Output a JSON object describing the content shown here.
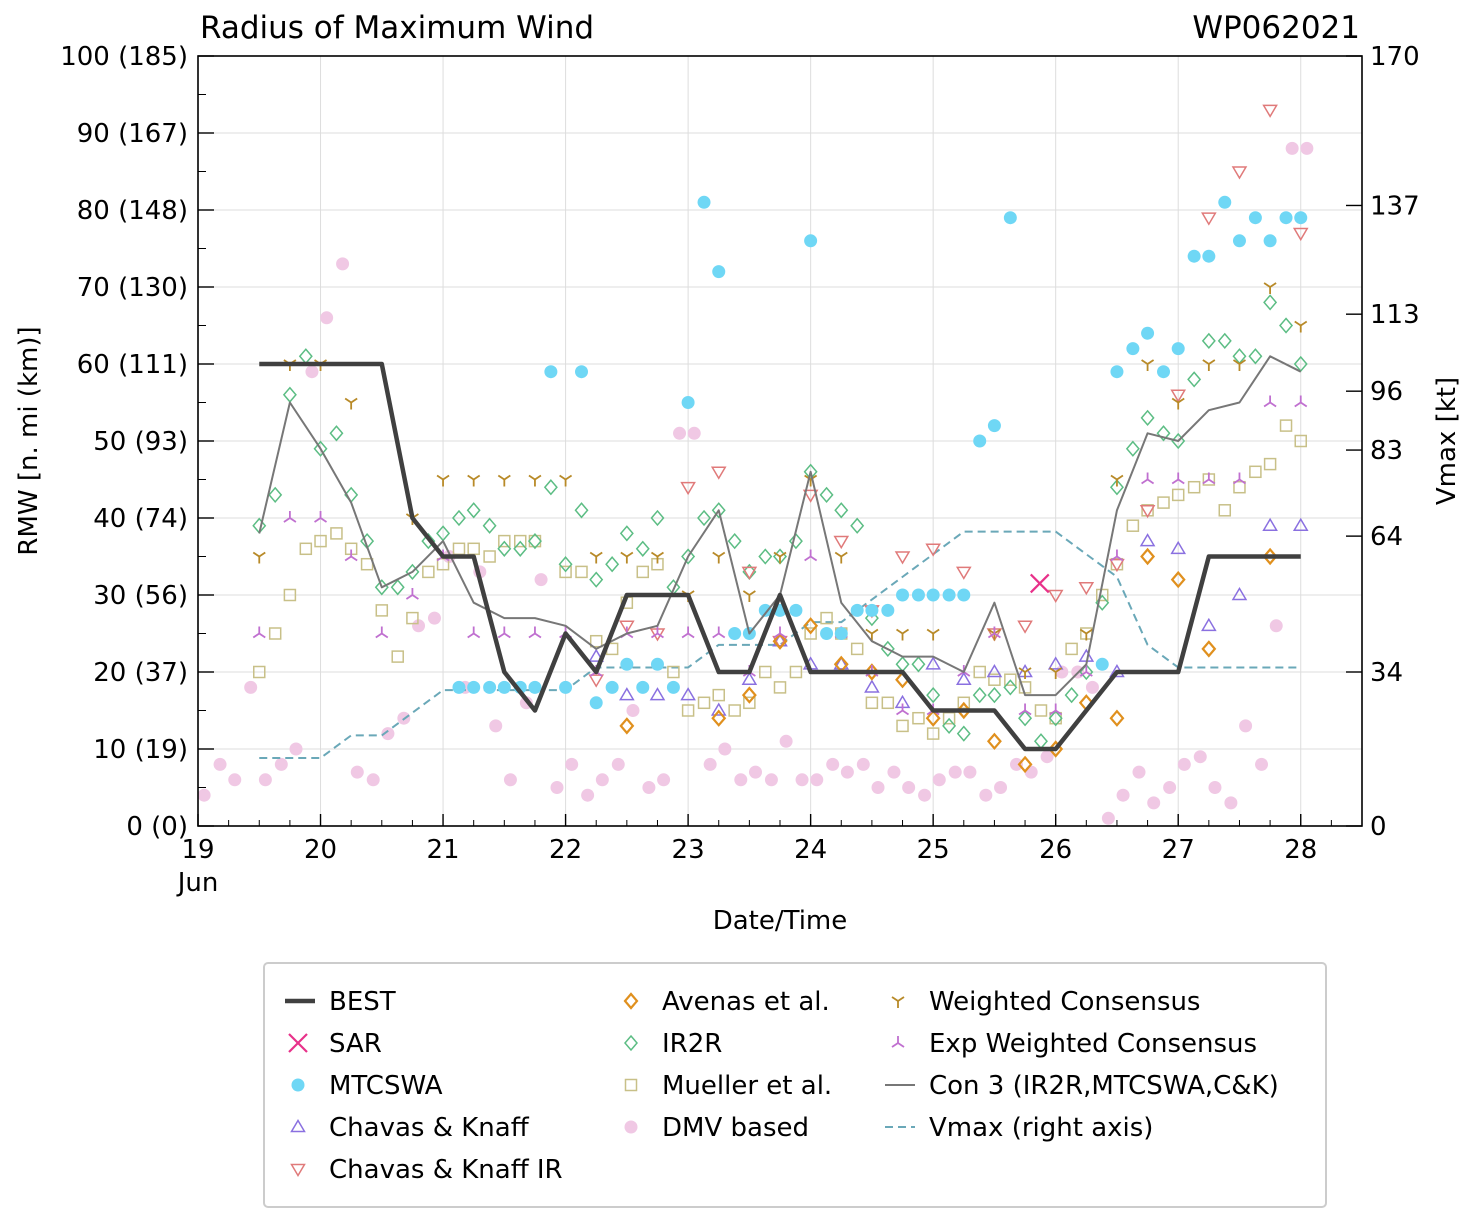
{
  "chart_data": {
    "type": "scatter",
    "title": "Radius of Maximum Wind",
    "storm_id": "WP062021",
    "xlabel": "Date/Time",
    "ylabel": "RMW [n. mi (km)]",
    "y2label": "Vmax [kt]",
    "x_unit": "day of June 2021",
    "xlim": [
      19,
      28.5
    ],
    "ylim": [
      0,
      100
    ],
    "y2lim": [
      0,
      170
    ],
    "x_ticks": [
      {
        "value": 19,
        "label": "19"
      },
      {
        "value": 20,
        "label": "20"
      },
      {
        "value": 21,
        "label": "21"
      },
      {
        "value": 22,
        "label": "22"
      },
      {
        "value": 23,
        "label": "23"
      },
      {
        "value": 24,
        "label": "24"
      },
      {
        "value": 25,
        "label": "25"
      },
      {
        "value": 26,
        "label": "26"
      },
      {
        "value": 27,
        "label": "27"
      },
      {
        "value": 28,
        "label": "28"
      }
    ],
    "x_month_label": "Jun",
    "y_ticks": [
      {
        "value": 0,
        "label": "0 (0)"
      },
      {
        "value": 10,
        "label": "10 (19)"
      },
      {
        "value": 20,
        "label": "20 (37)"
      },
      {
        "value": 30,
        "label": "30 (56)"
      },
      {
        "value": 40,
        "label": "40 (74)"
      },
      {
        "value": 50,
        "label": "50 (93)"
      },
      {
        "value": 60,
        "label": "60 (111)"
      },
      {
        "value": 70,
        "label": "70 (130)"
      },
      {
        "value": 80,
        "label": "80 (148)"
      },
      {
        "value": 90,
        "label": "90 (167)"
      },
      {
        "value": 100,
        "label": "100 (185)"
      }
    ],
    "y2_ticks": [
      {
        "value": 0,
        "label": "0"
      },
      {
        "value": 34,
        "label": "34"
      },
      {
        "value": 64,
        "label": "64"
      },
      {
        "value": 83,
        "label": "83"
      },
      {
        "value": 96,
        "label": "96"
      },
      {
        "value": 113,
        "label": "113"
      },
      {
        "value": 137,
        "label": "137"
      },
      {
        "value": 170,
        "label": "170"
      }
    ],
    "series": [
      {
        "name": "BEST",
        "style": "line",
        "color": "#404040",
        "x": [
          19.5,
          20.5,
          20.75,
          21,
          21.25,
          21.5,
          21.75,
          22,
          22.25,
          22.5,
          22.75,
          23,
          23.25,
          23.5,
          23.75,
          24,
          24.25,
          24.5,
          24.75,
          25,
          25.25,
          25.5,
          25.75,
          26,
          26.25,
          26.5,
          26.75,
          27,
          27.25,
          27.5,
          27.75,
          28
        ],
        "y": [
          60,
          60,
          40,
          35,
          35,
          20,
          15,
          25,
          20,
          30,
          30,
          30,
          20,
          20,
          30,
          20,
          20,
          20,
          20,
          15,
          15,
          15,
          10,
          10,
          15,
          20,
          20,
          20,
          35,
          35,
          35,
          35
        ]
      },
      {
        "name": "SAR",
        "style": "x",
        "color": "#e8318a",
        "x": [
          25.87
        ],
        "y": [
          31.5
        ]
      },
      {
        "name": "MTCSWA",
        "style": "circle",
        "color": "#6fd7f5",
        "x": [
          21.13,
          21.25,
          21.38,
          21.5,
          21.63,
          21.75,
          21.88,
          22,
          22.13,
          22.25,
          22.38,
          22.5,
          22.63,
          22.75,
          22.88,
          23,
          23.13,
          23.25,
          23.38,
          23.5,
          23.63,
          23.75,
          23.88,
          24,
          24.13,
          24.25,
          24.38,
          24.5,
          24.63,
          24.75,
          24.88,
          25,
          25.13,
          25.25,
          25.38,
          25.5,
          25.63,
          26.38,
          26.5,
          26.63,
          26.75,
          26.88,
          27,
          27.13,
          27.25,
          27.38,
          27.5,
          27.63,
          27.75,
          27.88,
          28
        ],
        "y": [
          18,
          18,
          18,
          18,
          18,
          18,
          59,
          18,
          59,
          16,
          18,
          21,
          18,
          21,
          18,
          55,
          81,
          72,
          25,
          25,
          28,
          28,
          28,
          76,
          25,
          25,
          28,
          28,
          28,
          30,
          30,
          30,
          30,
          30,
          50,
          52,
          79,
          21,
          59,
          62,
          64,
          59,
          62,
          74,
          74,
          81,
          76,
          79,
          76,
          79,
          79
        ]
      },
      {
        "name": "Chavas & Knaff",
        "style": "triangle-up",
        "color": "#8a70e0",
        "x": [
          22.25,
          22.5,
          22.75,
          23,
          23.25,
          23.5,
          23.75,
          24,
          24.25,
          24.5,
          24.75,
          25,
          25.25,
          25.5,
          25.75,
          26,
          26.25,
          26.5,
          26.75,
          27,
          27.25,
          27.5,
          27.75,
          28
        ],
        "y": [
          22,
          17,
          17,
          17,
          15,
          19,
          24,
          21,
          21,
          18,
          16,
          21,
          19,
          20,
          20,
          21,
          22,
          20,
          37,
          36,
          26,
          30,
          39,
          39
        ]
      },
      {
        "name": "Chavas & Knaff IR",
        "style": "triangle-down",
        "color": "#e07a7a",
        "x": [
          22.25,
          22.5,
          22.75,
          23,
          23.25,
          23.5,
          23.75,
          24,
          24.25,
          24.5,
          24.75,
          25,
          25.25,
          25.5,
          25.75,
          26,
          26.25,
          26.5,
          26.75,
          27,
          27.25,
          27.5,
          27.75,
          28
        ],
        "y": [
          19,
          26,
          25,
          44,
          46,
          33,
          24,
          43,
          37,
          28,
          35,
          36,
          33,
          25,
          26,
          30,
          31,
          34,
          41,
          56,
          79,
          85,
          93,
          77
        ]
      },
      {
        "name": "Avenas et al.",
        "style": "diamond",
        "color": "#e0901e",
        "x": [
          22.5,
          23.25,
          23.5,
          23.75,
          24,
          24.25,
          24.5,
          24.75,
          25,
          25.25,
          25.5,
          25.75,
          26,
          26.25,
          26.5,
          26.75,
          27,
          27.25,
          27.75
        ],
        "y": [
          13,
          14,
          17,
          24,
          26,
          21,
          20,
          19,
          14,
          15,
          11,
          8,
          10,
          16,
          14,
          35,
          32,
          23,
          35
        ]
      },
      {
        "name": "IR2R",
        "style": "diamond-open",
        "color": "#5cbd84",
        "x": [
          19.5,
          19.63,
          19.75,
          19.88,
          20,
          20.13,
          20.25,
          20.38,
          20.5,
          20.63,
          20.75,
          20.88,
          21,
          21.13,
          21.25,
          21.38,
          21.5,
          21.63,
          21.75,
          21.88,
          22,
          22.13,
          22.25,
          22.38,
          22.5,
          22.63,
          22.75,
          22.88,
          23,
          23.13,
          23.25,
          23.38,
          23.5,
          23.63,
          23.75,
          23.88,
          24,
          24.13,
          24.25,
          24.38,
          24.5,
          24.63,
          24.75,
          24.88,
          25,
          25.13,
          25.25,
          25.38,
          25.5,
          25.63,
          25.75,
          25.88,
          26,
          26.13,
          26.25,
          26.38,
          26.5,
          26.63,
          26.75,
          26.88,
          27,
          27.13,
          27.25,
          27.38,
          27.5,
          27.63,
          27.75,
          27.88,
          28
        ],
        "y": [
          39,
          43,
          56,
          61,
          49,
          51,
          43,
          37,
          31,
          31,
          33,
          37,
          38,
          40,
          41,
          39,
          36,
          36,
          37,
          44,
          34,
          41,
          32,
          34,
          38,
          36,
          40,
          31,
          35,
          40,
          41,
          37,
          33,
          35,
          35,
          37,
          46,
          43,
          41,
          39,
          27,
          23,
          21,
          21,
          17,
          13,
          12,
          17,
          17,
          18,
          14,
          11,
          14,
          17,
          20,
          29,
          44,
          49,
          53,
          51,
          50,
          58,
          63,
          63,
          61,
          61,
          68,
          65,
          60
        ]
      },
      {
        "name": "Mueller et al.",
        "style": "square",
        "color": "#c8c088",
        "x": [
          19.5,
          19.63,
          19.75,
          19.88,
          20,
          20.13,
          20.25,
          20.38,
          20.5,
          20.63,
          20.75,
          20.88,
          21,
          21.13,
          21.25,
          21.38,
          21.5,
          21.63,
          21.75,
          22,
          22.13,
          22.25,
          22.38,
          22.5,
          22.63,
          22.75,
          22.88,
          23,
          23.13,
          23.25,
          23.38,
          23.5,
          23.63,
          23.75,
          23.88,
          24,
          24.13,
          24.25,
          24.38,
          24.5,
          24.63,
          24.75,
          24.88,
          25,
          25.13,
          25.25,
          25.38,
          25.5,
          25.63,
          25.75,
          25.88,
          26,
          26.13,
          26.25,
          26.38,
          26.5,
          26.63,
          26.75,
          26.88,
          27,
          27.13,
          27.25,
          27.38,
          27.5,
          27.63,
          27.75,
          27.88,
          28
        ],
        "y": [
          20,
          25,
          30,
          36,
          37,
          38,
          36,
          34,
          28,
          22,
          27,
          33,
          34,
          36,
          36,
          35,
          37,
          37,
          37,
          33,
          33,
          24,
          23,
          29,
          33,
          34,
          20,
          15,
          16,
          17,
          15,
          16,
          20,
          18,
          20,
          25,
          27,
          25,
          23,
          16,
          16,
          13,
          14,
          12,
          14,
          16,
          20,
          19,
          19,
          18,
          15,
          14,
          23,
          25,
          30,
          34,
          39,
          41,
          42,
          43,
          44,
          45,
          41,
          44,
          46,
          47,
          52,
          50
        ]
      },
      {
        "name": "DMV based",
        "style": "circle",
        "color": "#f0c8e4",
        "x": [
          19.05,
          19.18,
          19.3,
          19.43,
          19.55,
          19.68,
          19.8,
          19.93,
          20.05,
          20.18,
          20.3,
          20.43,
          20.55,
          20.68,
          20.8,
          20.93,
          21.05,
          21.18,
          21.3,
          21.43,
          21.55,
          21.68,
          21.8,
          21.93,
          22.05,
          22.18,
          22.3,
          22.43,
          22.55,
          22.68,
          22.8,
          22.93,
          23.05,
          23.18,
          23.3,
          23.43,
          23.55,
          23.68,
          23.8,
          23.93,
          24.05,
          24.18,
          24.3,
          24.43,
          24.55,
          24.68,
          24.8,
          24.93,
          25.05,
          25.18,
          25.3,
          25.43,
          25.55,
          25.68,
          25.8,
          25.93,
          26.05,
          26.18,
          26.3,
          26.43,
          26.55,
          26.68,
          26.8,
          26.93,
          27.05,
          27.18,
          27.3,
          27.43,
          27.55,
          27.68,
          27.8,
          27.93,
          28.05
        ],
        "y": [
          4,
          8,
          6,
          18,
          6,
          8,
          10,
          59,
          66,
          73,
          7,
          6,
          12,
          14,
          26,
          27,
          35,
          18,
          33,
          13,
          6,
          16,
          32,
          5,
          8,
          4,
          6,
          8,
          15,
          5,
          6,
          51,
          51,
          8,
          10,
          6,
          7,
          6,
          11,
          6,
          6,
          8,
          7,
          8,
          5,
          7,
          5,
          4,
          6,
          7,
          7,
          4,
          5,
          8,
          7,
          9,
          20,
          20,
          18,
          1,
          4,
          7,
          3,
          5,
          8,
          9,
          5,
          3,
          13,
          8,
          26,
          88,
          88
        ]
      },
      {
        "name": "Weighted Consensus",
        "style": "tri-down",
        "color": "#b88a28",
        "x": [
          19.5,
          19.75,
          20,
          20.25,
          20.75,
          21,
          21.25,
          21.5,
          21.75,
          22,
          22.25,
          22.5,
          22.75,
          23,
          23.25,
          23.5,
          23.75,
          24,
          24.25,
          24.5,
          24.75,
          25,
          25.5,
          25.75,
          26,
          26.25,
          26.5,
          26.75,
          27,
          27.25,
          27.5,
          27.75,
          28
        ],
        "y": [
          35,
          60,
          60,
          55,
          40,
          45,
          45,
          45,
          45,
          45,
          35,
          35,
          35,
          30,
          35,
          30,
          35,
          45,
          35,
          25,
          25,
          25,
          25,
          20,
          20,
          25,
          45,
          60,
          55,
          60,
          60,
          70,
          65
        ]
      },
      {
        "name": "Exp Weighted Consensus",
        "style": "tri-up",
        "color": "#c070d0",
        "x": [
          19.5,
          19.75,
          20,
          20.25,
          20.5,
          20.75,
          21,
          21.25,
          21.5,
          21.75,
          22,
          22.25,
          22.5,
          22.75,
          23,
          23.25,
          23.5,
          23.75,
          24,
          24.25,
          24.5,
          24.75,
          25,
          25.25,
          25.5,
          25.75,
          26,
          26.25,
          26.5,
          26.75,
          27,
          27.25,
          27.5,
          27.75,
          28
        ],
        "y": [
          25,
          40,
          40,
          35,
          25,
          30,
          35,
          25,
          25,
          25,
          25,
          20,
          25,
          25,
          25,
          25,
          20,
          25,
          35,
          25,
          20,
          15,
          15,
          20,
          25,
          15,
          15,
          20,
          35,
          45,
          45,
          45,
          45,
          55,
          55
        ]
      },
      {
        "name": "Con 3 (IR2R,MTCSWA,C&K)",
        "style": "thin-line",
        "color": "#777777",
        "x": [
          19.5,
          19.75,
          20,
          20.25,
          20.5,
          20.75,
          21,
          21.25,
          21.5,
          21.75,
          22,
          22.25,
          22.5,
          22.75,
          23,
          23.25,
          23.5,
          23.75,
          24,
          24.25,
          24.5,
          24.75,
          25,
          25.25,
          25.5,
          25.75,
          26,
          26.25,
          26.5,
          26.75,
          27,
          27.25,
          27.5,
          27.75,
          28
        ],
        "y": [
          38,
          55,
          49,
          42,
          31,
          33,
          37,
          29,
          27,
          27,
          26,
          23,
          25,
          26,
          35,
          41,
          25,
          30,
          46,
          29,
          24,
          22,
          22,
          20,
          29,
          17,
          17,
          21,
          41,
          51,
          50,
          54,
          55,
          61,
          59
        ]
      },
      {
        "name": "Vmax (right axis)",
        "style": "dashed",
        "color": "#6aa8b8",
        "axis": "right",
        "x": [
          19.5,
          19.75,
          20,
          20.25,
          20.5,
          20.75,
          21,
          21.25,
          21.5,
          21.75,
          22,
          22.25,
          22.5,
          22.75,
          23,
          23.25,
          23.5,
          23.75,
          24,
          24.25,
          24.5,
          24.75,
          25,
          25.25,
          25.5,
          25.75,
          26,
          26.25,
          26.5,
          26.75,
          27,
          27.25,
          27.5,
          27.75,
          28
        ],
        "y": [
          15,
          15,
          15,
          20,
          20,
          25,
          30,
          30,
          30,
          30,
          30,
          35,
          35,
          35,
          35,
          40,
          40,
          40,
          45,
          45,
          50,
          55,
          60,
          65,
          65,
          65,
          65,
          60,
          55,
          40,
          35,
          35,
          35,
          35,
          35
        ]
      }
    ]
  }
}
